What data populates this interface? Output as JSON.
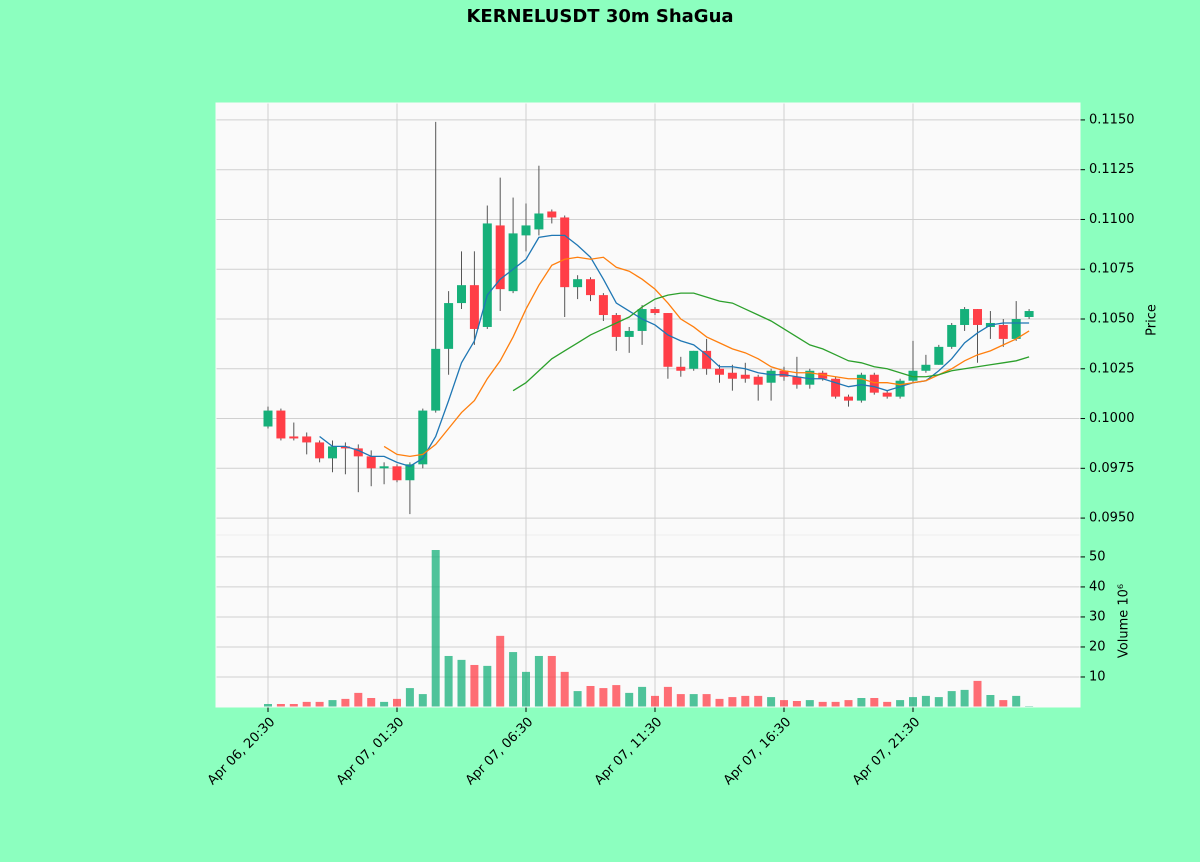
{
  "chart_data": [
    {
      "type": "candlestick",
      "title": "KERNELUSDT 30m ShaGua",
      "ylabel": "Price",
      "categories": [
        "Apr 06, 20:30",
        null,
        null,
        null,
        null,
        null,
        null,
        null,
        null,
        null,
        "Apr 07, 01:30",
        null,
        null,
        null,
        null,
        null,
        null,
        null,
        null,
        null,
        "Apr 07, 06:30",
        null,
        null,
        null,
        null,
        null,
        null,
        null,
        null,
        null,
        "Apr 07, 11:30",
        null,
        null,
        null,
        null,
        null,
        null,
        null,
        null,
        null,
        "Apr 07, 16:30",
        null,
        null,
        null,
        null,
        null,
        null,
        null,
        null,
        null,
        "Apr 07, 21:30",
        null,
        null,
        null,
        null,
        null,
        null,
        null,
        null,
        null
      ],
      "open": [
        0.0996,
        0.1004,
        0.0991,
        0.0991,
        0.0988,
        0.098,
        0.0986,
        0.0985,
        0.0981,
        0.0975,
        0.0976,
        0.0969,
        0.0977,
        0.1004,
        0.1035,
        0.1058,
        0.1067,
        0.1046,
        0.1097,
        0.1064,
        0.1092,
        0.1095,
        0.1104,
        0.1101,
        0.1066,
        0.107,
        0.1062,
        0.1052,
        0.1041,
        0.1044,
        0.1055,
        0.1053,
        0.1026,
        0.1025,
        0.1034,
        0.1025,
        0.1023,
        0.1022,
        0.1021,
        0.1018,
        0.1024,
        0.1021,
        0.1017,
        0.1023,
        0.102,
        0.1011,
        0.1009,
        0.1022,
        0.1013,
        0.1011,
        0.1019,
        0.1024,
        0.1027,
        0.1036,
        0.1047,
        0.1055,
        0.1046,
        0.1047,
        0.104,
        0.1051
      ],
      "high": [
        0.1006,
        0.1005,
        0.0998,
        0.0993,
        0.0989,
        0.0989,
        0.0988,
        0.0987,
        0.0984,
        0.0978,
        0.0977,
        0.0978,
        0.1005,
        0.1149,
        0.1064,
        0.1084,
        0.1084,
        0.1107,
        0.1121,
        0.1111,
        0.1108,
        0.1127,
        0.1105,
        0.1102,
        0.1072,
        0.1071,
        0.1063,
        0.1053,
        0.1046,
        0.1057,
        0.1056,
        0.1053,
        0.1031,
        0.1034,
        0.104,
        0.1027,
        0.1027,
        0.1028,
        0.1022,
        0.1025,
        0.1026,
        0.1031,
        0.1025,
        0.1024,
        0.1021,
        0.1012,
        0.1023,
        0.1023,
        0.1014,
        0.102,
        0.1039,
        0.1032,
        0.1037,
        0.1048,
        0.1056,
        0.1055,
        0.1054,
        0.105,
        0.1059,
        0.1055
      ],
      "low": [
        0.0995,
        0.0989,
        0.0989,
        0.0982,
        0.0978,
        0.0973,
        0.0972,
        0.0963,
        0.0966,
        0.0967,
        0.0968,
        0.0952,
        0.0975,
        0.1003,
        0.1022,
        0.1055,
        0.1037,
        0.1045,
        0.1054,
        0.1063,
        0.1084,
        0.1092,
        0.1098,
        0.1051,
        0.106,
        0.1059,
        0.1049,
        0.1034,
        0.1033,
        0.1037,
        0.1052,
        0.102,
        0.1021,
        0.1024,
        0.1022,
        0.1018,
        0.1014,
        0.1018,
        0.1009,
        0.1009,
        0.1019,
        0.1015,
        0.1015,
        0.1019,
        0.101,
        0.1006,
        0.1008,
        0.1012,
        0.101,
        0.101,
        0.1018,
        0.1023,
        0.1027,
        0.1035,
        0.1044,
        0.1028,
        0.104,
        0.1036,
        0.1039,
        0.105
      ],
      "close": [
        0.1004,
        0.099,
        0.099,
        0.0988,
        0.098,
        0.0986,
        0.0985,
        0.0981,
        0.0975,
        0.0976,
        0.0969,
        0.0977,
        0.1004,
        0.1035,
        0.1058,
        0.1067,
        0.1045,
        0.1098,
        0.1065,
        0.1093,
        0.1097,
        0.1103,
        0.1101,
        0.1066,
        0.107,
        0.1062,
        0.1052,
        0.1041,
        0.1044,
        0.1055,
        0.1053,
        0.1026,
        0.1024,
        0.1034,
        0.1025,
        0.1022,
        0.102,
        0.102,
        0.1017,
        0.1024,
        0.1021,
        0.1017,
        0.1024,
        0.102,
        0.1011,
        0.1009,
        0.1022,
        0.1013,
        0.1011,
        0.1019,
        0.1024,
        0.1027,
        0.1036,
        0.1047,
        0.1055,
        0.1047,
        0.1048,
        0.104,
        0.105,
        0.1054
      ],
      "up_color": "#16b07a",
      "down_color": "#ff3e47",
      "lines": [
        {
          "color": "#1f77b4",
          "values": [
            null,
            null,
            null,
            null,
            0.0991,
            0.0986,
            0.0986,
            0.0984,
            0.0981,
            0.0981,
            0.0978,
            0.0976,
            0.098,
            0.0991,
            0.1009,
            0.1028,
            0.1039,
            0.1062,
            0.107,
            0.1075,
            0.108,
            0.1091,
            0.1092,
            0.1092,
            0.1087,
            0.1081,
            0.107,
            0.1058,
            0.1054,
            0.105,
            0.1047,
            0.1042,
            0.1039,
            0.1037,
            0.1032,
            0.1026,
            0.1026,
            0.1025,
            0.1023,
            0.1022,
            0.1022,
            0.1021,
            0.102,
            0.102,
            0.1018,
            0.1016,
            0.1017,
            0.1016,
            0.1014,
            0.1016,
            0.1018,
            0.1019,
            0.1024,
            0.103,
            0.1038,
            0.1043,
            0.1047,
            0.1048,
            0.1048,
            0.1048
          ]
        },
        {
          "color": "#ff7f0e",
          "values": [
            null,
            null,
            null,
            null,
            null,
            null,
            null,
            null,
            null,
            0.0986,
            0.0982,
            0.0981,
            0.0982,
            0.0987,
            0.0995,
            0.1003,
            0.1009,
            0.102,
            0.1029,
            0.1041,
            0.1055,
            0.1067,
            0.1077,
            0.108,
            0.1081,
            0.108,
            0.1081,
            0.1076,
            0.1074,
            0.107,
            0.1065,
            0.1058,
            0.105,
            0.1046,
            0.1041,
            0.1038,
            0.1035,
            0.1033,
            0.103,
            0.1026,
            0.1024,
            0.1023,
            0.1023,
            0.1022,
            0.1021,
            0.102,
            0.102,
            0.1018,
            0.1018,
            0.1017,
            0.1018,
            0.1019,
            0.1022,
            0.1025,
            0.1029,
            0.1032,
            0.1034,
            0.1037,
            0.104,
            0.1044
          ]
        },
        {
          "color": "#2ca02c",
          "values": [
            null,
            null,
            null,
            null,
            null,
            null,
            null,
            null,
            null,
            null,
            null,
            null,
            null,
            null,
            null,
            null,
            null,
            null,
            null,
            0.1014,
            0.1018,
            0.1024,
            0.103,
            0.1034,
            0.1038,
            0.1042,
            0.1045,
            0.1048,
            0.1051,
            0.1056,
            0.106,
            0.1062,
            0.1063,
            0.1063,
            0.1061,
            0.1059,
            0.1058,
            0.1055,
            0.1052,
            0.1049,
            0.1045,
            0.1041,
            0.1037,
            0.1035,
            0.1032,
            0.1029,
            0.1028,
            0.1026,
            0.1025,
            0.1023,
            0.1021,
            0.1021,
            0.1022,
            0.1024,
            0.1025,
            0.1026,
            0.1027,
            0.1028,
            0.1029,
            0.1031
          ]
        }
      ],
      "ylim": [
        0.09415,
        0.11585
      ],
      "yticks": [
        {
          "value": 0.095,
          "label": "0.0950"
        },
        {
          "value": 0.0975,
          "label": "0.0975"
        },
        {
          "value": 0.1,
          "label": "0.1000"
        },
        {
          "value": 0.1025,
          "label": "0.1025"
        },
        {
          "value": 0.105,
          "label": "0.1050"
        },
        {
          "value": 0.1075,
          "label": "0.1075"
        },
        {
          "value": 0.11,
          "label": "0.1100"
        },
        {
          "value": 0.1125,
          "label": "0.1125"
        },
        {
          "value": 0.115,
          "label": "0.1150"
        }
      ],
      "grid": true
    },
    {
      "type": "bar",
      "ylabel": "Volume  10⁶",
      "values": [
        1.0,
        1.0,
        1.0,
        1.7,
        1.7,
        2.3,
        2.7,
        4.7,
        3.0,
        1.7,
        2.7,
        6.3,
        4.3,
        52.3,
        17.0,
        15.7,
        14.0,
        13.7,
        23.7,
        18.3,
        11.7,
        17.0,
        17.0,
        11.7,
        5.3,
        7.0,
        6.3,
        7.3,
        4.7,
        6.7,
        3.7,
        6.7,
        4.3,
        4.3,
        4.3,
        2.7,
        3.3,
        3.7,
        3.7,
        3.3,
        2.3,
        2.0,
        2.3,
        1.7,
        1.7,
        2.3,
        3.0,
        3.0,
        1.7,
        2.3,
        3.3,
        3.7,
        3.3,
        5.3,
        5.7,
        8.7,
        4.0,
        2.3,
        3.7,
        0.3
      ],
      "ylim": [
        0,
        57.3
      ],
      "yticks": [
        10,
        20,
        30,
        40,
        50
      ],
      "grid": true
    }
  ]
}
